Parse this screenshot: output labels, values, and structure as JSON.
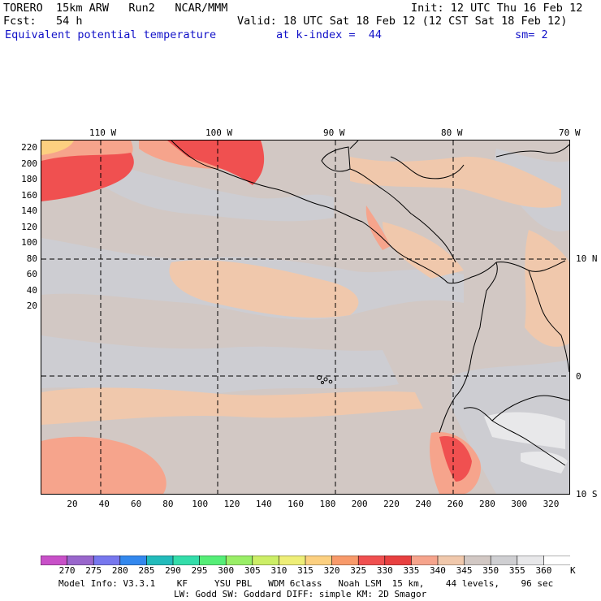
{
  "header": {
    "model": "TORERO  15km ARW   Run2   NCAR/MMM",
    "init": "Init: 12 UTC Thu 16 Feb 12",
    "fcst": "Fcst:   54 h",
    "valid": "Valid: 18 UTC Sat 18 Feb 12 (12 CST Sat 18 Feb 12)",
    "field": "Equivalent potential temperature",
    "kindex": "at k-index =  44",
    "sm": "sm= 2"
  },
  "map": {
    "top_labels": [
      "110 W",
      "100 W",
      "90 W",
      "80 W",
      "70 W"
    ],
    "right_labels": [
      "10 N",
      "0",
      "10 S"
    ],
    "left_ticks": [
      "220",
      "200",
      "180",
      "160",
      "140",
      "120",
      "100",
      "80",
      "60",
      "40",
      "20"
    ],
    "bottom_ticks": [
      "20",
      "40",
      "60",
      "80",
      "100",
      "120",
      "140",
      "160",
      "180",
      "200",
      "220",
      "240",
      "260",
      "280",
      "300",
      "320"
    ]
  },
  "colorbar": {
    "levels": [
      "270",
      "275",
      "280",
      "285",
      "290",
      "295",
      "300",
      "305",
      "310",
      "315",
      "320",
      "325",
      "330",
      "335",
      "340",
      "345",
      "350",
      "355",
      "360"
    ],
    "unit": "K",
    "colors": [
      "#c850c8",
      "#9966cc",
      "#7777ee",
      "#3388ee",
      "#22bbbb",
      "#33ddaa",
      "#55ee77",
      "#99ee66",
      "#ccee66",
      "#eeee77",
      "#fcd080",
      "#f89a6a",
      "#f05050",
      "#e84040",
      "#f6a48c",
      "#f0c8ac",
      "#d2c8c4",
      "#cfcfd2",
      "#e8e8ea",
      "#ffffff"
    ]
  },
  "footer": {
    "line1": "Model Info: V3.3.1    KF     YSU PBL   WDM 6class   Noah LSM  15 km,    44 levels,    96 sec",
    "line2": "LW: Godd SW: Goddard DIFF: simple KM: 2D Smagor"
  }
}
